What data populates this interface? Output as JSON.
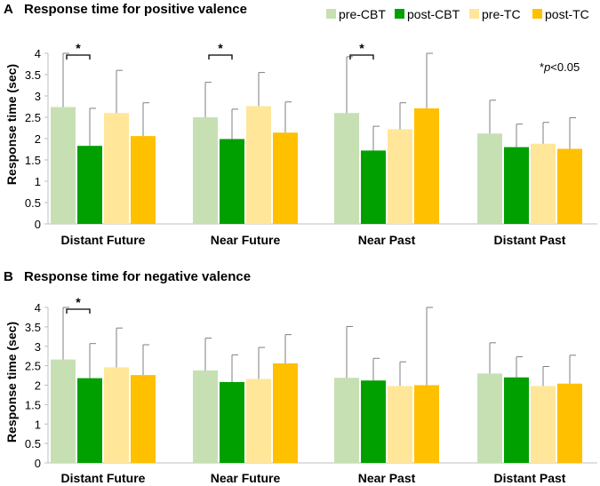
{
  "chart_data": [
    {
      "type": "bar",
      "panel_label": "A",
      "title": "Response time for positive valence",
      "ylabel": "Response time (sec)",
      "xlabel": "",
      "ylim": [
        0,
        4
      ],
      "yticks": [
        "0",
        "0.5",
        "1",
        "1.5",
        "2",
        "2.5",
        "3",
        "3.5",
        "4"
      ],
      "categories": [
        "Distant Future",
        "Near Future",
        "Near Past",
        "Distant Past"
      ],
      "series": [
        {
          "name": "pre-CBT",
          "color": "#c6e0b4",
          "values": [
            2.74,
            2.5,
            2.6,
            2.12
          ],
          "errors": [
            1.26,
            0.82,
            1.32,
            0.78
          ]
        },
        {
          "name": "post-CBT",
          "color": "#00a000",
          "values": [
            1.83,
            1.99,
            1.72,
            1.8
          ],
          "errors": [
            0.88,
            0.7,
            0.57,
            0.54
          ]
        },
        {
          "name": "pre-TC",
          "color": "#ffe699",
          "values": [
            2.6,
            2.76,
            2.22,
            1.88
          ],
          "errors": [
            1.0,
            0.79,
            0.62,
            0.5
          ]
        },
        {
          "name": "post-TC",
          "color": "#ffc000",
          "values": [
            2.06,
            2.14,
            2.71,
            1.76
          ],
          "errors": [
            0.78,
            0.72,
            1.29,
            0.73
          ]
        }
      ],
      "significance": [
        {
          "category": 0,
          "pair": [
            0,
            1
          ],
          "label": "*"
        },
        {
          "category": 1,
          "pair": [
            0,
            1
          ],
          "label": "*"
        },
        {
          "category": 2,
          "pair": [
            0,
            1
          ],
          "label": "*"
        }
      ],
      "annotation_prefix": "*",
      "annotation_p": "p",
      "annotation_suffix": "<0.05"
    },
    {
      "type": "bar",
      "panel_label": "B",
      "title": "Response time for negative valence",
      "ylabel": "Response time (sec)",
      "xlabel": "",
      "ylim": [
        0,
        4
      ],
      "yticks": [
        "0",
        "0.5",
        "1",
        "1.5",
        "2",
        "2.5",
        "3",
        "3.5",
        "4"
      ],
      "categories": [
        "Distant Future",
        "Near Future",
        "Near Past",
        "Distant Past"
      ],
      "series": [
        {
          "name": "pre-CBT",
          "color": "#c6e0b4",
          "values": [
            2.66,
            2.38,
            2.19,
            2.3
          ],
          "errors": [
            1.34,
            0.83,
            1.32,
            0.79
          ]
        },
        {
          "name": "post-CBT",
          "color": "#00a000",
          "values": [
            2.18,
            2.08,
            2.12,
            2.2
          ],
          "errors": [
            0.89,
            0.7,
            0.57,
            0.53
          ]
        },
        {
          "name": "pre-TC",
          "color": "#ffe699",
          "values": [
            2.46,
            2.16,
            1.98,
            1.98
          ],
          "errors": [
            1.01,
            0.81,
            0.62,
            0.5
          ]
        },
        {
          "name": "post-TC",
          "color": "#ffc000",
          "values": [
            2.26,
            2.56,
            2.0,
            2.04
          ],
          "errors": [
            0.78,
            0.74,
            2.0,
            0.73
          ]
        }
      ],
      "significance": [
        {
          "category": 0,
          "pair": [
            0,
            1
          ],
          "label": "*"
        }
      ]
    }
  ]
}
